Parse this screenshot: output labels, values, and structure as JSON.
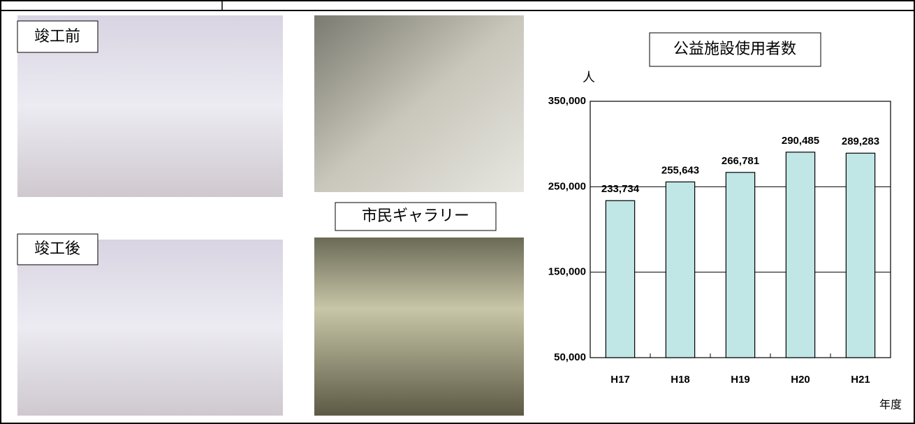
{
  "photo_labels": {
    "before": "竣工前",
    "after": "竣工後",
    "gallery": "市民ギャラリー"
  },
  "chart_data": {
    "type": "bar",
    "title": "公益施設使用者数",
    "y_label": "人",
    "x_label": "年度",
    "categories": [
      "H17",
      "H18",
      "H19",
      "H20",
      "H21"
    ],
    "values": [
      233734,
      255643,
      266781,
      290485,
      289283
    ],
    "value_labels": [
      "233,734",
      "255,643",
      "266,781",
      "290,485",
      "289,283"
    ],
    "color": "#c0e6e6",
    "ylim": [
      50000,
      350000
    ],
    "yticks": [
      {
        "value": 50000,
        "label": "50,000"
      },
      {
        "value": 150000,
        "label": "150,000"
      },
      {
        "value": 250000,
        "label": "250,000"
      },
      {
        "value": 350000,
        "label": "350,000"
      }
    ],
    "grid": true
  }
}
